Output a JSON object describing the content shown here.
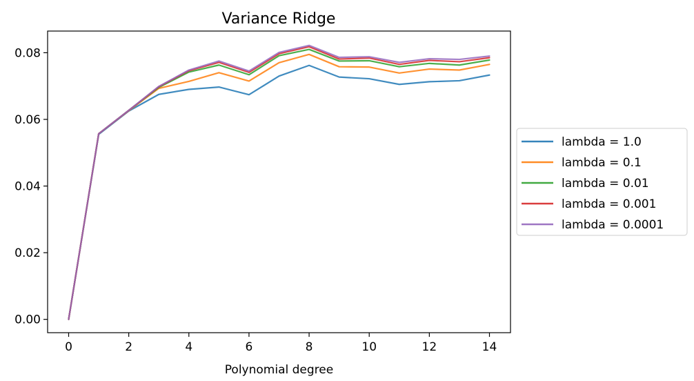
{
  "chart_data": {
    "type": "line",
    "title": "Variance Ridge",
    "xlabel": "Polynomial degree",
    "ylabel": "",
    "xlim": [
      -0.7,
      14.7
    ],
    "ylim": [
      -0.004,
      0.0865
    ],
    "xticks": [
      0,
      2,
      4,
      6,
      8,
      10,
      12,
      14
    ],
    "xtick_labels": [
      "0",
      "2",
      "4",
      "6",
      "8",
      "10",
      "12",
      "14"
    ],
    "yticks": [
      0.0,
      0.02,
      0.04,
      0.06,
      0.08
    ],
    "ytick_labels": [
      "0.00",
      "0.02",
      "0.04",
      "0.06",
      "0.08"
    ],
    "grid": false,
    "legend_position": "outside-right",
    "x": [
      0,
      1,
      2,
      3,
      4,
      5,
      6,
      7,
      8,
      9,
      10,
      11,
      12,
      13,
      14
    ],
    "series": [
      {
        "name": "lambda = 1.0",
        "color": "#1f77b4",
        "values": [
          0.0,
          0.0555,
          0.0625,
          0.0675,
          0.069,
          0.0697,
          0.0674,
          0.073,
          0.0762,
          0.0727,
          0.0722,
          0.0705,
          0.0713,
          0.0716,
          0.0733
        ]
      },
      {
        "name": "lambda = 0.1",
        "color": "#ff7f0e",
        "values": [
          0.0,
          0.0557,
          0.0626,
          0.0693,
          0.0714,
          0.074,
          0.0715,
          0.077,
          0.0795,
          0.0758,
          0.0757,
          0.0739,
          0.0751,
          0.0748,
          0.0765
        ]
      },
      {
        "name": "lambda = 0.01",
        "color": "#2ca02c",
        "values": [
          0.0,
          0.0557,
          0.0627,
          0.0696,
          0.0742,
          0.0763,
          0.0734,
          0.0791,
          0.081,
          0.0775,
          0.0776,
          0.0758,
          0.0768,
          0.0763,
          0.0778
        ]
      },
      {
        "name": "lambda = 0.001",
        "color": "#d62728",
        "values": [
          0.0,
          0.0557,
          0.0627,
          0.0698,
          0.0746,
          0.0771,
          0.0741,
          0.0797,
          0.0818,
          0.0781,
          0.0784,
          0.0765,
          0.0777,
          0.0773,
          0.0785
        ]
      },
      {
        "name": "lambda = 0.0001",
        "color": "#9467bd",
        "values": [
          0.0,
          0.0557,
          0.0627,
          0.0699,
          0.0748,
          0.0775,
          0.0745,
          0.0801,
          0.0822,
          0.0786,
          0.0788,
          0.0771,
          0.0782,
          0.078,
          0.079
        ]
      }
    ]
  }
}
